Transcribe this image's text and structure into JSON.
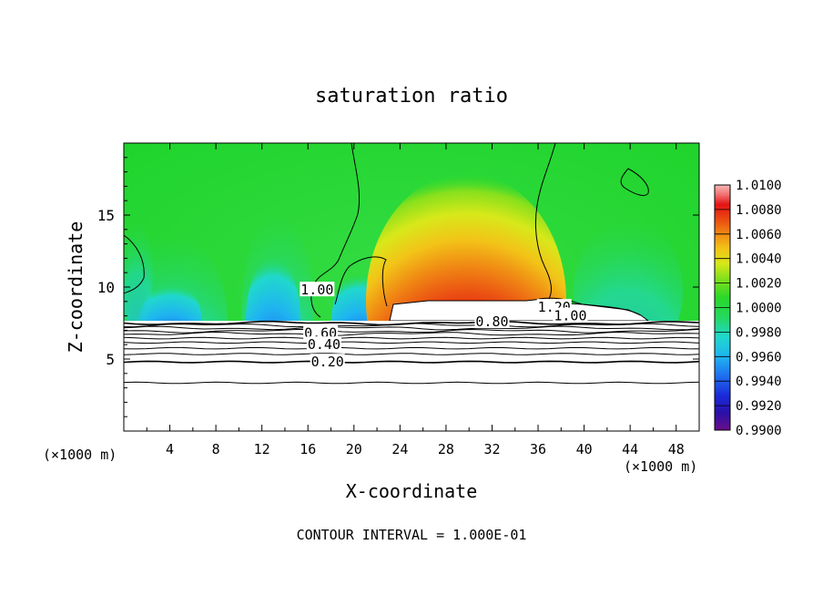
{
  "chart_data": {
    "type": "heatmap",
    "title": "saturation ratio",
    "xlabel": "X-coordinate",
    "ylabel": "Z-coordinate",
    "x_units_left": "(×1000 m)",
    "x_units_right": "(×1000 m)",
    "footer": "CONTOUR INTERVAL = 1.000E-01",
    "xlim": [
      0,
      50
    ],
    "ylim": [
      0,
      20
    ],
    "x_ticks": [
      "4",
      "8",
      "12",
      "16",
      "20",
      "24",
      "28",
      "32",
      "36",
      "40",
      "44",
      "48"
    ],
    "x_tick_values": [
      4,
      8,
      12,
      16,
      20,
      24,
      28,
      32,
      36,
      40,
      44,
      48
    ],
    "y_ticks": [
      "5",
      "10",
      "15"
    ],
    "y_tick_values": [
      5,
      10,
      15
    ],
    "colorbar": {
      "min": 0.99,
      "max": 1.01,
      "labels": [
        "1.0100",
        "1.0080",
        "1.0060",
        "1.0040",
        "1.0020",
        "1.0000",
        "0.9980",
        "0.9960",
        "0.9940",
        "0.9920",
        "0.9900"
      ],
      "label_values": [
        1.01,
        1.008,
        1.006,
        1.004,
        1.002,
        1.0,
        0.998,
        0.996,
        0.994,
        0.992,
        0.99
      ],
      "colors": [
        "#6a0f8a",
        "#2a10a8",
        "#1a2ad8",
        "#1f6ff0",
        "#1fb4f0",
        "#20d8cc",
        "#25d860",
        "#2ad82a",
        "#86e01c",
        "#d8e81a",
        "#f2c418",
        "#f08a14",
        "#ea4a12",
        "#e41414",
        "#f07070",
        "#f8b8b8"
      ]
    },
    "contour_labels": [
      {
        "text": "1.00",
        "x": 16.8,
        "z": 9.8
      },
      {
        "text": "1.20",
        "x": 37.4,
        "z": 8.6
      },
      {
        "text": "1.00",
        "x": 38.8,
        "z": 8.0
      },
      {
        "text": "0.80",
        "x": 32.0,
        "z": 7.6
      },
      {
        "text": "0.60",
        "x": 17.1,
        "z": 6.8
      },
      {
        "text": "0.40",
        "x": 17.4,
        "z": 6.0
      },
      {
        "text": "0.20",
        "x": 17.7,
        "z": 4.8
      }
    ],
    "contour_levels_z": [
      7.5,
      7.35,
      7.15,
      6.95,
      6.75,
      6.45,
      6.15,
      5.75,
      5.35,
      4.8,
      3.35
    ]
  }
}
